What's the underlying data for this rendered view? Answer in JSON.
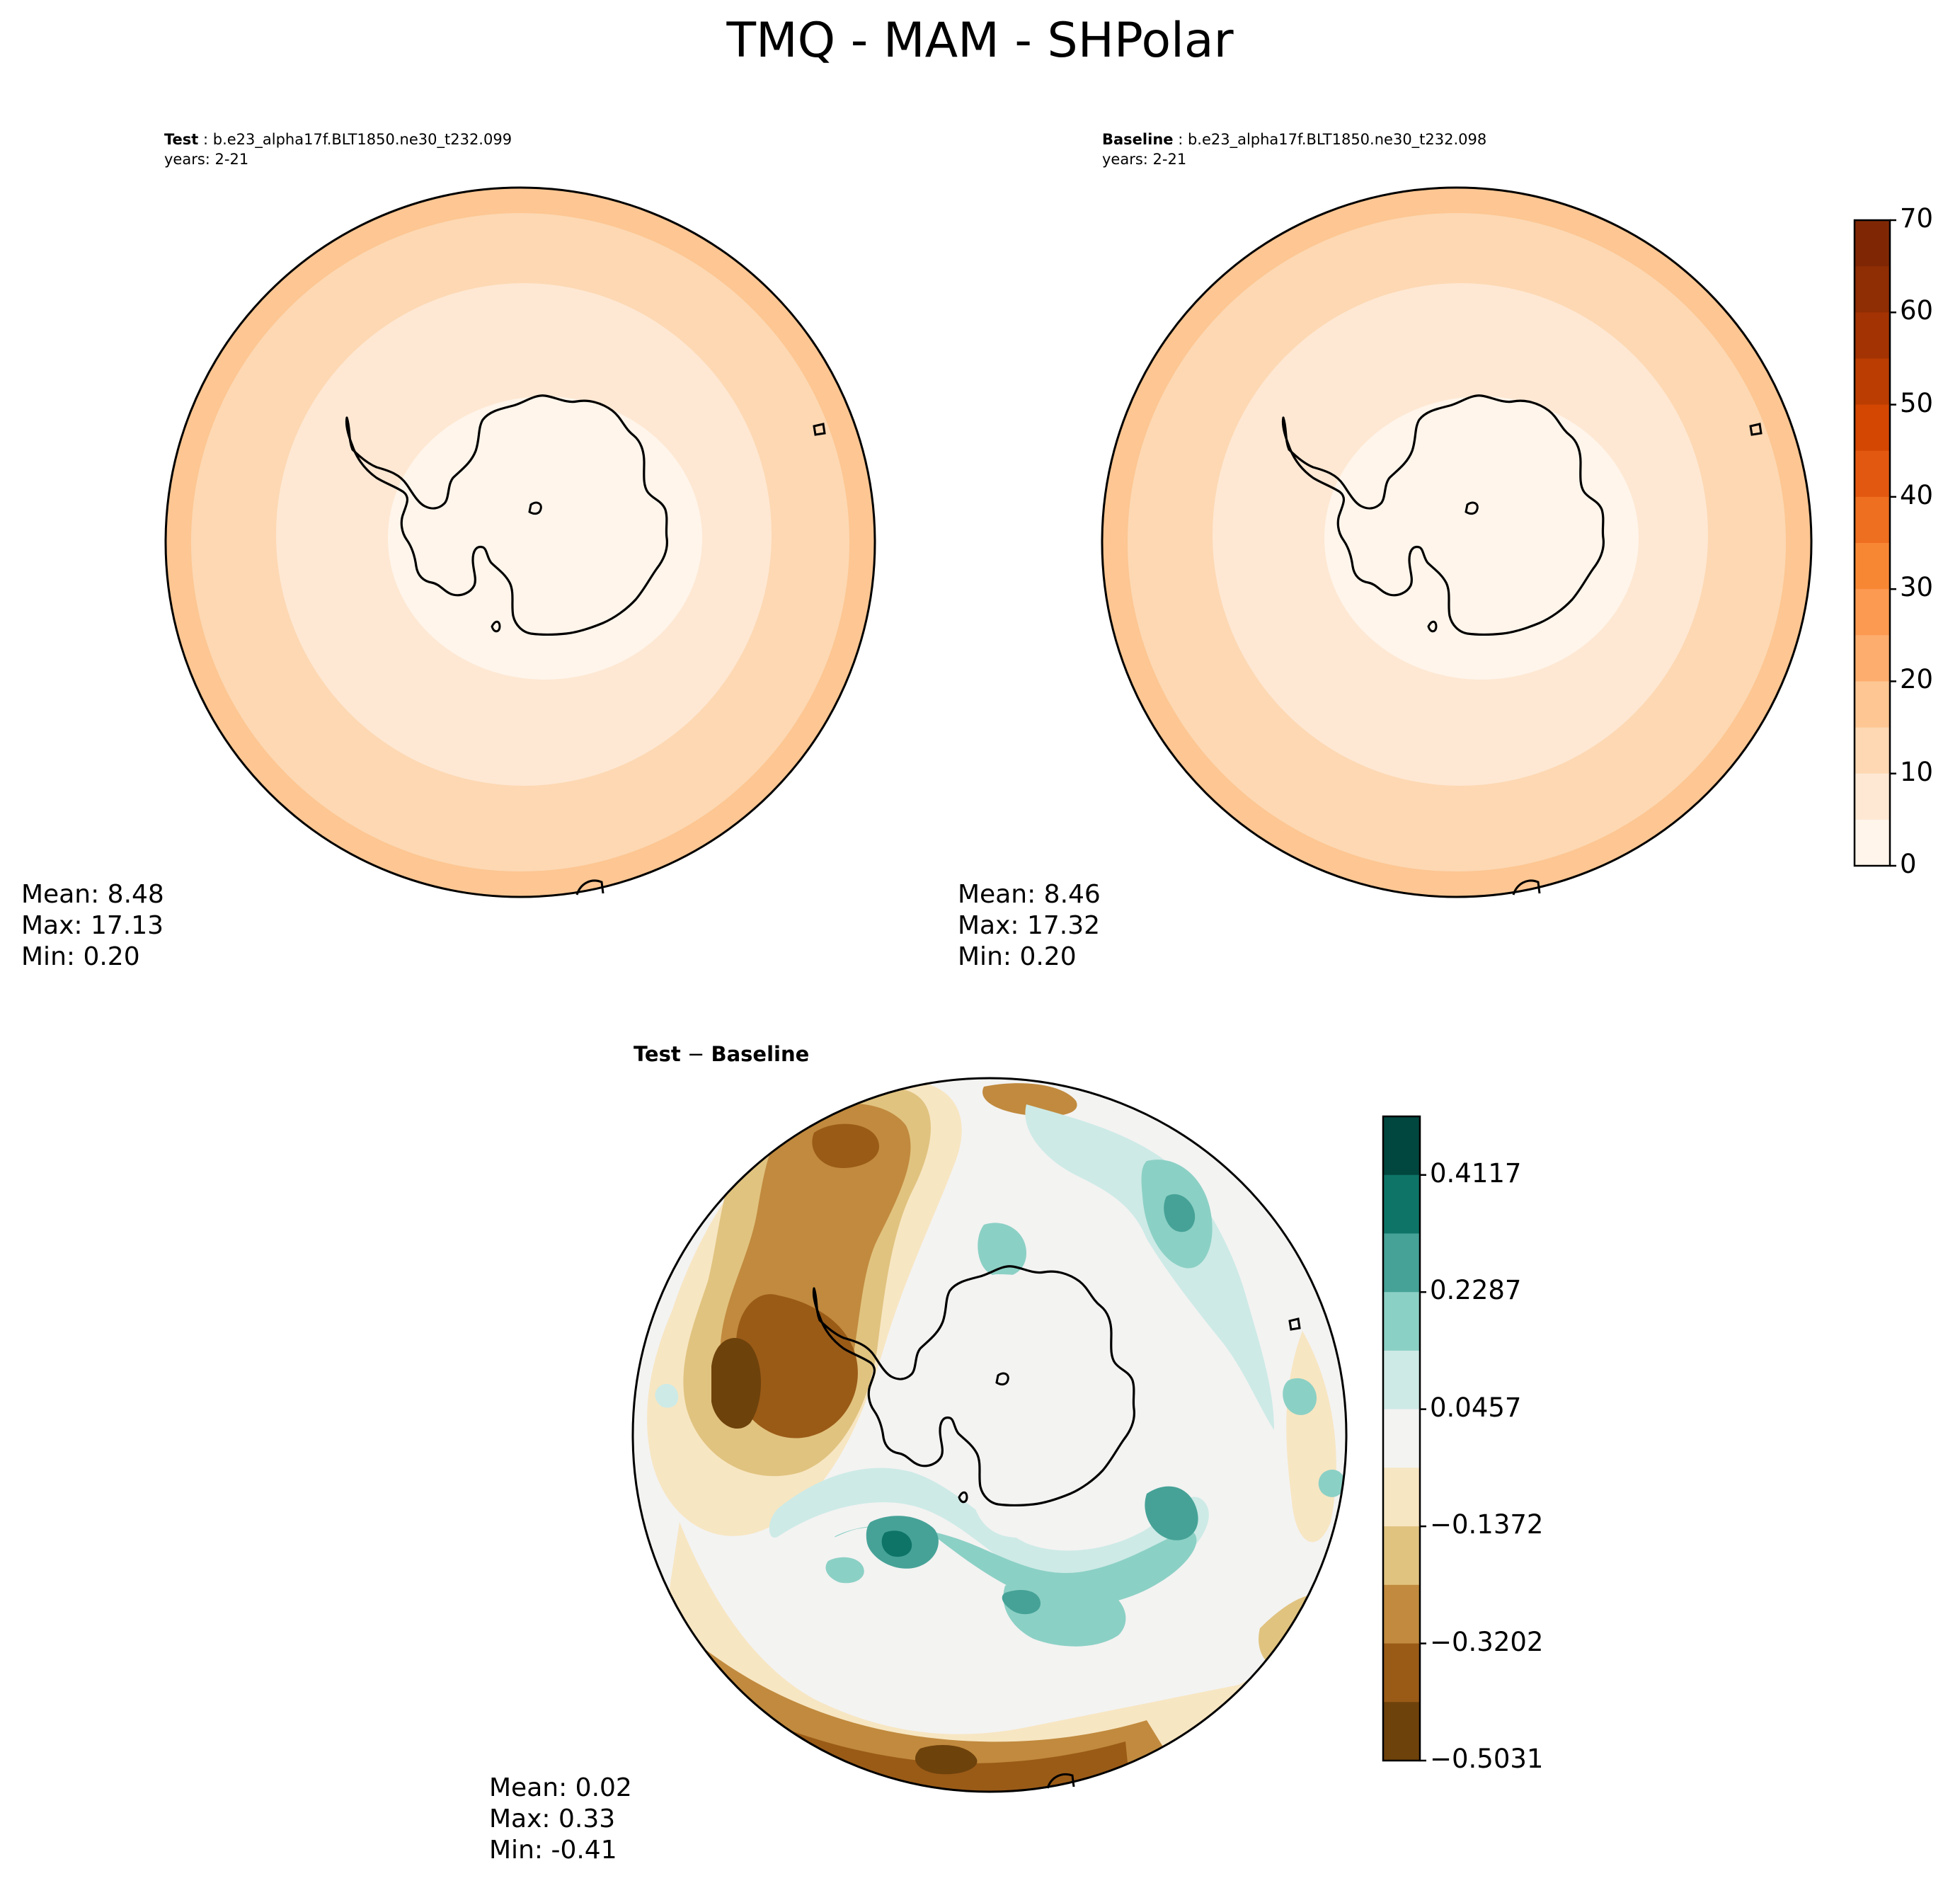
{
  "figure": {
    "suptitle": "TMQ - MAM - SHPolar"
  },
  "panels": {
    "test": {
      "label": "Test",
      "case": " : b.e23_alpha17f.BLT1850.ne30_t232.099",
      "years": "years: 2-21",
      "stats": {
        "mean": "Mean:  8.48",
        "max": "Max: 17.13",
        "min": "Min:  0.20"
      }
    },
    "baseline": {
      "label": "Baseline",
      "case": " : b.e23_alpha17f.BLT1850.ne30_t232.098",
      "years": "years: 2-21",
      "stats": {
        "mean": "Mean:  8.46",
        "max": "Max: 17.32",
        "min": "Min:  0.20"
      }
    },
    "diff": {
      "title_a": "Test",
      "title_sep": " − ",
      "title_b": "Baseline",
      "stats": {
        "mean": "Mean:  0.02",
        "max": "Max:  0.33",
        "min": "Min: -0.41"
      }
    }
  },
  "colorbars": {
    "main": {
      "tick_labels": [
        "0",
        "10",
        "20",
        "30",
        "40",
        "50",
        "60",
        "70"
      ],
      "levels": [
        0,
        5,
        10,
        15,
        20,
        25,
        30,
        35,
        40,
        45,
        50,
        55,
        60,
        65,
        70
      ],
      "colors": [
        "#fff5eb",
        "#fee8d3",
        "#fdd8b3",
        "#fdc692",
        "#fdad6e",
        "#fd9a51",
        "#f88734",
        "#ed6f1f",
        "#e25810",
        "#d34703",
        "#bb3d02",
        "#a33302",
        "#8f2d04",
        "#7f2704"
      ]
    },
    "diff": {
      "tick_labels": [
        "0.4117",
        "0.2287",
        "0.0457",
        "−0.1372",
        "−0.3202",
        "−0.5031"
      ],
      "colors_top_to_bottom": [
        "#01473f",
        "#0e7468",
        "#46a297",
        "#8bd0c5",
        "#cdeae6",
        "#f3f3f2",
        "#f7e6c2",
        "#e0c37f",
        "#c18a3e",
        "#9a5b17",
        "#6e420b"
      ]
    }
  },
  "chart_data": [
    {
      "type": "heatmap",
      "title": "Test : b.e23_alpha17f.BLT1850.ne30_t232.099",
      "subtitle": "years: 2-21",
      "projection": "south polar stereographic",
      "field": "TMQ",
      "season": "MAM",
      "contour_levels": [
        0,
        5,
        10,
        15,
        20,
        25,
        30,
        35,
        40,
        45,
        50,
        55,
        60,
        65,
        70
      ],
      "mean": 8.48,
      "max": 17.13,
      "min": 0.2
    },
    {
      "type": "heatmap",
      "title": "Baseline : b.e23_alpha17f.BLT1850.ne30_t232.098",
      "subtitle": "years: 2-21",
      "projection": "south polar stereographic",
      "field": "TMQ",
      "season": "MAM",
      "contour_levels": [
        0,
        5,
        10,
        15,
        20,
        25,
        30,
        35,
        40,
        45,
        50,
        55,
        60,
        65,
        70
      ],
      "mean": 8.46,
      "max": 17.32,
      "min": 0.2
    },
    {
      "type": "heatmap",
      "title": "Test − Baseline",
      "projection": "south polar stereographic",
      "colorbar_ticks": [
        0.4117,
        0.2287,
        0.0457,
        -0.1372,
        -0.3202,
        -0.5031
      ],
      "mean": 0.02,
      "max": 0.33,
      "min": -0.41
    }
  ]
}
